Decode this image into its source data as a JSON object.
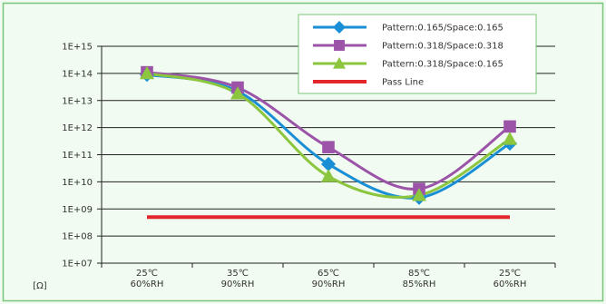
{
  "chart_data": {
    "type": "line",
    "y_scale": "log",
    "ylim": [
      10000000.0,
      1000000000000000.0
    ],
    "y_ticks": [
      {
        "value": 1000000000000000.0,
        "label": "1E+15"
      },
      {
        "value": 100000000000000.0,
        "label": "1E+14"
      },
      {
        "value": 10000000000000.0,
        "label": "1E+13"
      },
      {
        "value": 1000000000000.0,
        "label": "1E+12"
      },
      {
        "value": 100000000000.0,
        "label": "1E+11"
      },
      {
        "value": 10000000000.0,
        "label": "1E+10"
      },
      {
        "value": 1000000000.0,
        "label": "1E+09"
      },
      {
        "value": 100000000.0,
        "label": "1E+08"
      },
      {
        "value": 10000000.0,
        "label": "1E+07"
      }
    ],
    "ylabel": "[Ω]",
    "categories": [
      {
        "temp": "25℃",
        "rh": "60%RH"
      },
      {
        "temp": "35℃",
        "rh": "90%RH"
      },
      {
        "temp": "65℃",
        "rh": "90%RH"
      },
      {
        "temp": "85℃",
        "rh": "85%RH"
      },
      {
        "temp": "25℃",
        "rh": "60%RH"
      }
    ],
    "series": [
      {
        "name": "Pattern:0.165/Space:0.165",
        "color": "#1a8fd6",
        "marker": "diamond",
        "values": [
          90000000000000.0,
          22000000000000.0,
          45000000000.0,
          2600000000.0,
          260000000000.0
        ]
      },
      {
        "name": "Pattern:0.318/Space:0.318",
        "color": "#9b54a8",
        "marker": "square",
        "values": [
          110000000000000.0,
          30000000000000.0,
          190000000000.0,
          5500000000.0,
          1100000000000.0
        ]
      },
      {
        "name": "Pattern:0.318/Space:0.165",
        "color": "#8cc63f",
        "marker": "triangle",
        "values": [
          100000000000000.0,
          18000000000000.0,
          16000000000.0,
          3200000000.0,
          380000000000.0
        ]
      }
    ],
    "pass_line": {
      "name": "Pass Line",
      "color": "#e3262c",
      "value": 500000000.0
    },
    "grid": true,
    "legend_position": "top-right"
  }
}
